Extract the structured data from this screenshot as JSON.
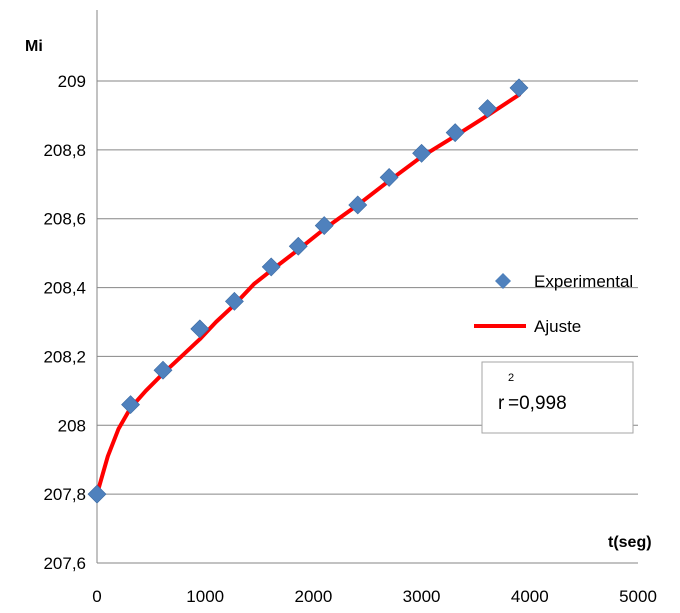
{
  "chart_data": {
    "type": "scatter",
    "title": "",
    "xlabel": "t(seg)",
    "ylabel": "Mi",
    "xlim": [
      0,
      5000
    ],
    "ylim": [
      207.6,
      209.0
    ],
    "xticks": [
      0,
      1000,
      2000,
      3000,
      4000,
      5000
    ],
    "yticks": [
      207.6,
      207.8,
      208.0,
      208.2,
      208.4,
      208.6,
      208.8,
      209.0
    ],
    "xtick_labels": [
      "0",
      "1000",
      "2000",
      "3000",
      "4000",
      "5000"
    ],
    "ytick_labels": [
      "207,6",
      "207,8",
      "208",
      "208,2",
      "208,4",
      "208,6",
      "208,8",
      "209"
    ],
    "grid": "horizontal",
    "legend_position": "right",
    "series": [
      {
        "name": "Experimental",
        "kind": "markers",
        "marker": "diamond",
        "color": "#4f81bd",
        "x": [
          0,
          310,
          610,
          950,
          1270,
          1610,
          1860,
          2100,
          2410,
          2700,
          3000,
          3310,
          3610,
          3900
        ],
        "y": [
          207.8,
          208.06,
          208.16,
          208.28,
          208.36,
          208.46,
          208.52,
          208.58,
          208.64,
          208.72,
          208.79,
          208.85,
          208.92,
          208.98
        ]
      },
      {
        "name": "Ajuste",
        "kind": "line",
        "color": "#ff0000",
        "x": [
          0,
          100,
          200,
          310,
          450,
          610,
          780,
          950,
          1100,
          1270,
          1450,
          1610,
          1860,
          2100,
          2410,
          2700,
          3000,
          3310,
          3610,
          3900
        ],
        "y": [
          207.8,
          207.91,
          207.99,
          208.05,
          208.1,
          208.15,
          208.2,
          208.25,
          208.3,
          208.35,
          208.41,
          208.45,
          208.51,
          208.57,
          208.64,
          208.71,
          208.78,
          208.84,
          208.9,
          208.96
        ]
      }
    ],
    "annotation": {
      "base": "r",
      "sup": "2",
      "text": "=0,998"
    }
  }
}
